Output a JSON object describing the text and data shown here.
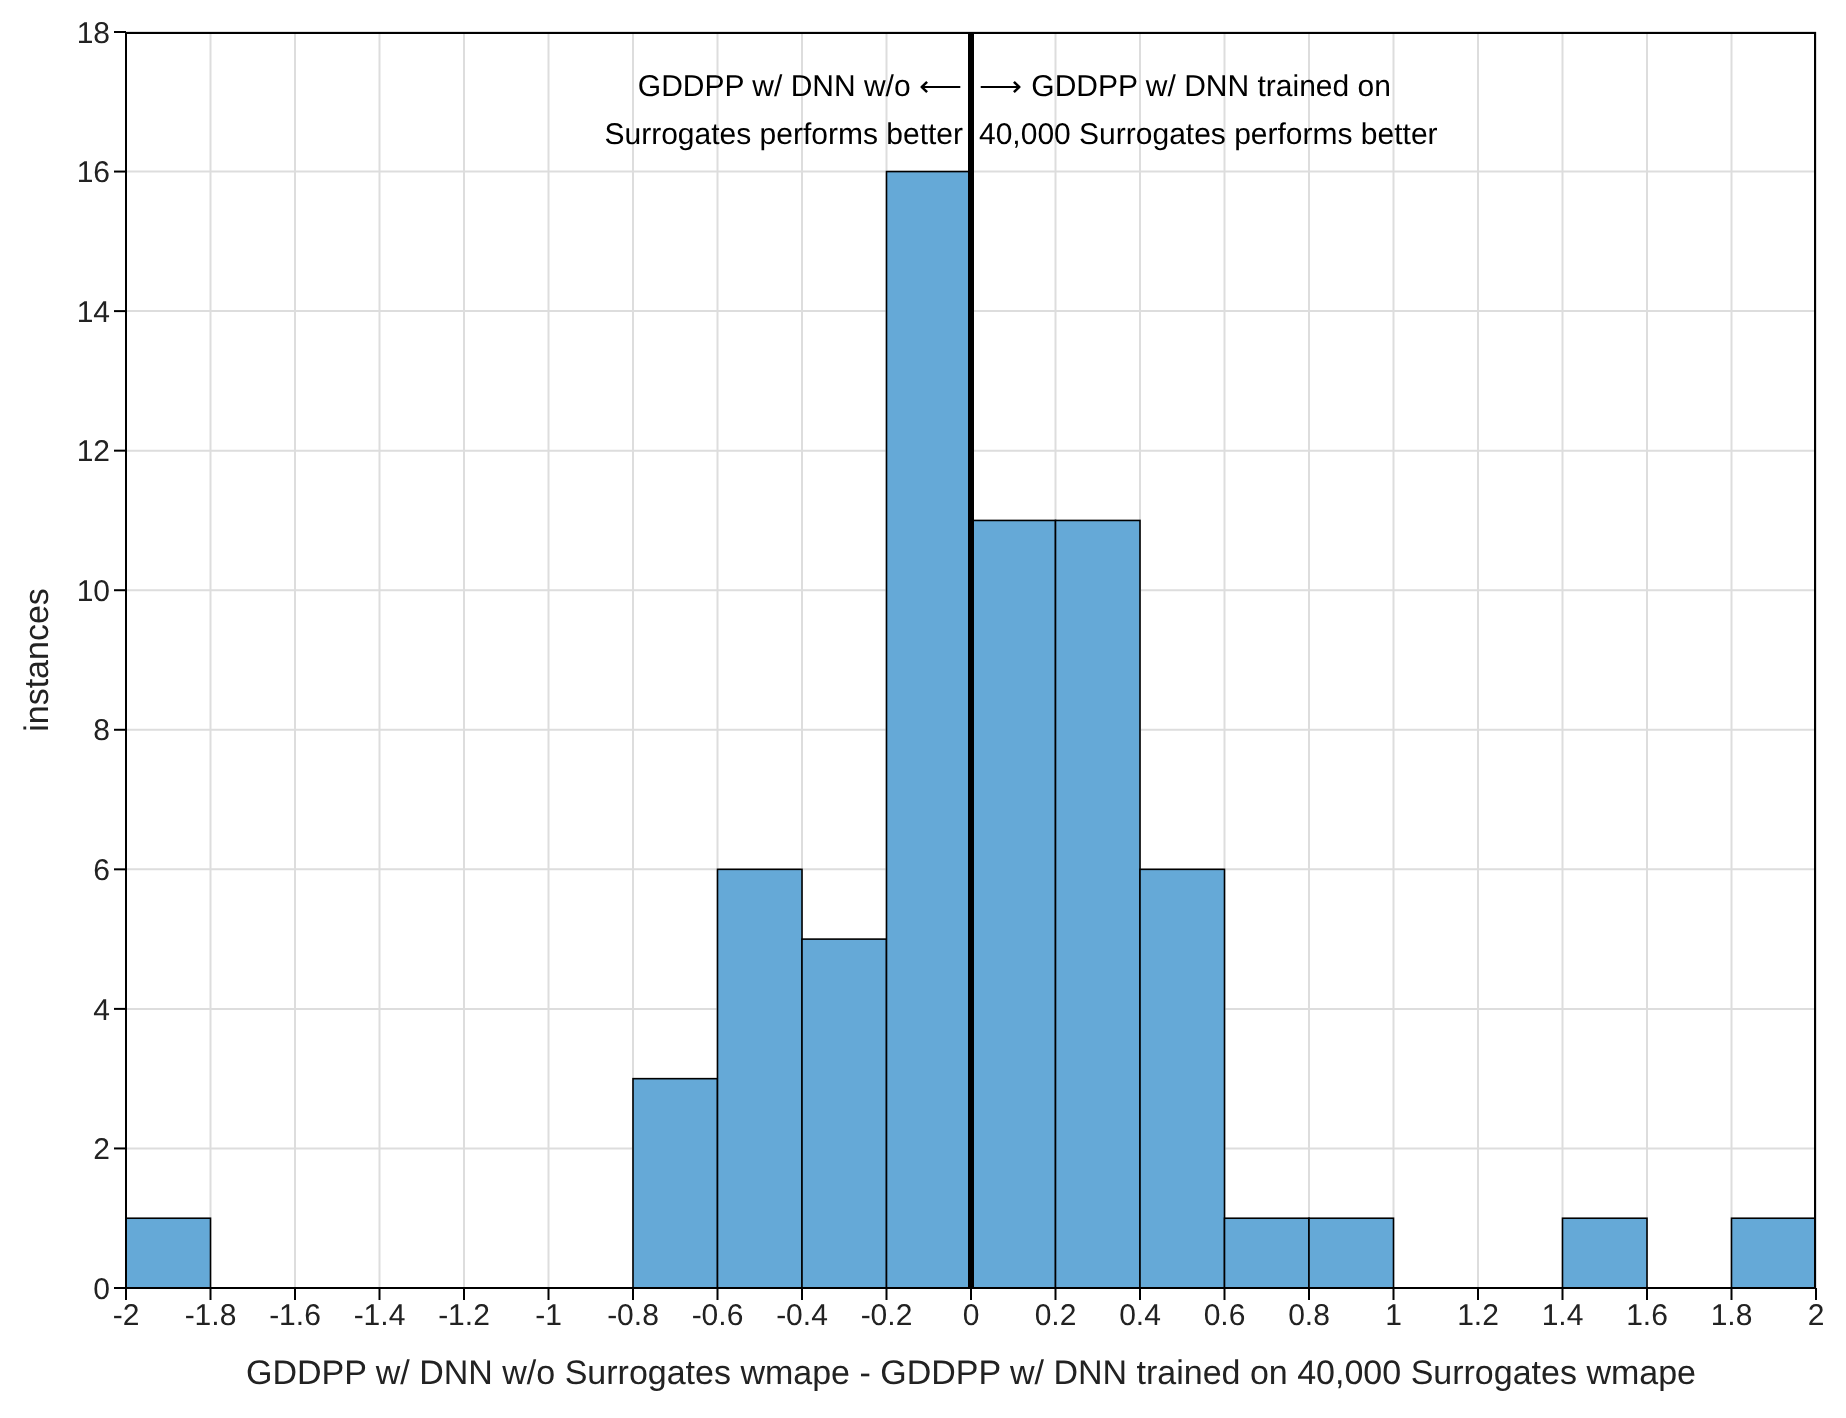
{
  "chart_data": {
    "type": "histogram",
    "xlabel": "GDDPP w/ DNN w/o Surrogates wmape - GDDPP w/ DNN trained on 40,000 Surrogates wmape",
    "ylabel": "instances",
    "bins": [
      -2,
      -1.8,
      -1.6,
      -1.4,
      -1.2,
      -1,
      -0.8,
      -0.6,
      -0.4,
      -0.2,
      0,
      0.2,
      0.4,
      0.6,
      0.8,
      1,
      1.2,
      1.4,
      1.6,
      1.8,
      2
    ],
    "values": [
      1,
      0,
      0,
      0,
      0,
      0,
      3,
      6,
      5,
      16,
      11,
      11,
      6,
      1,
      1,
      0,
      0,
      1,
      0,
      1
    ],
    "color": "#65a9d7",
    "xlim": [
      -2,
      2
    ],
    "xticks": [
      -2,
      -1.8,
      -1.6,
      -1.4,
      -1.2,
      -1,
      -0.8,
      -0.6,
      -0.4,
      -0.2,
      0,
      0.2,
      0.4,
      0.6,
      0.8,
      1,
      1.2,
      1.4,
      1.6,
      1.8,
      2
    ],
    "ylim": [
      0,
      18
    ],
    "yticks": [
      0,
      2,
      4,
      6,
      8,
      10,
      12,
      14,
      16,
      18
    ],
    "grid": true,
    "ref_lines": [
      {
        "axis": "x",
        "value": 0,
        "color": "#000000"
      }
    ],
    "annotations": [
      "GDDPP w/ DNN w/o ⟵\nSurrogates performs better",
      "⟶ GDDPP w/ DNN trained on\n40,000 Surrogates performs better"
    ]
  }
}
